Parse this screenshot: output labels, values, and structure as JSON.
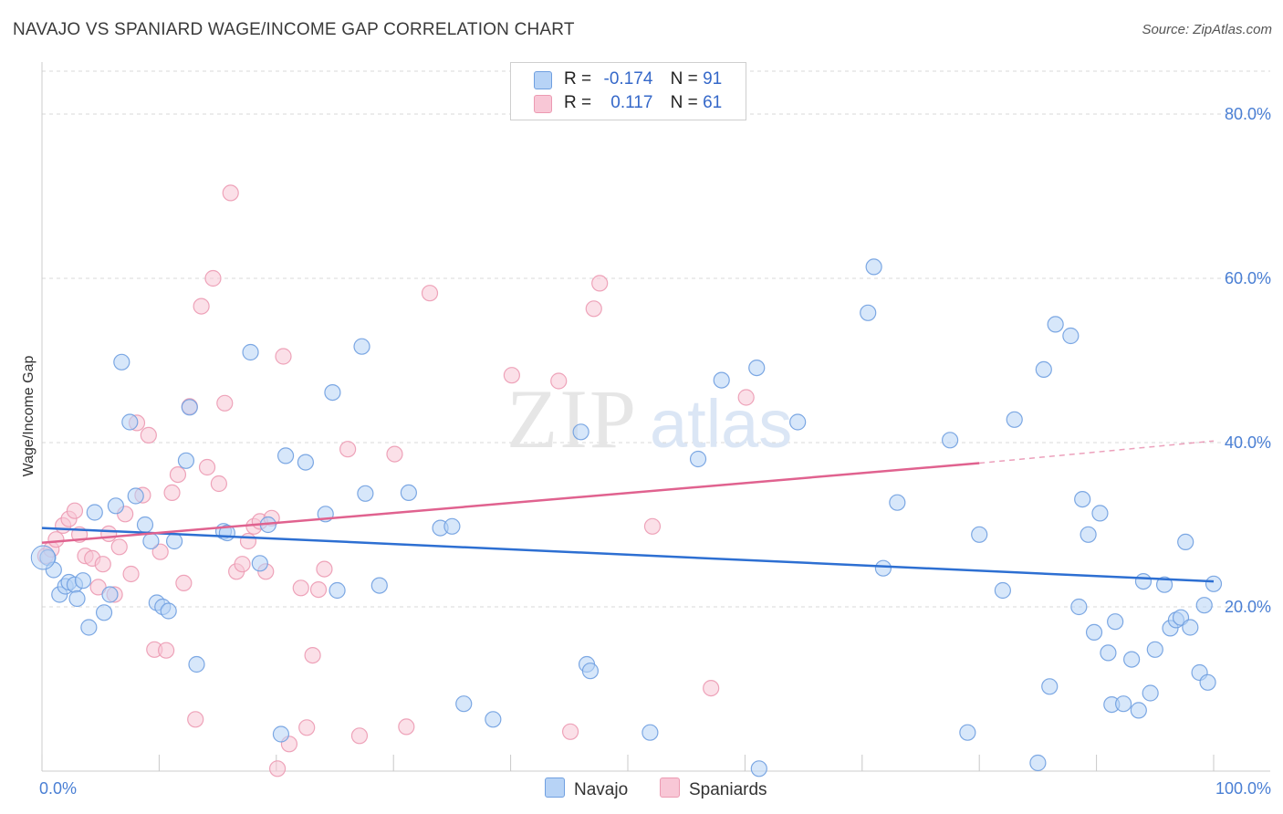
{
  "title": "NAVAJO VS SPANIARD WAGE/INCOME GAP CORRELATION CHART",
  "source": "Source: ZipAtlas.com",
  "watermark": {
    "zip": "ZIP",
    "atlas": "atlas"
  },
  "legend": {
    "navajo": {
      "r_label": "R =",
      "r_value": "-0.174",
      "n_label": "N =",
      "n_value": "91"
    },
    "spaniards": {
      "r_label": "R =",
      "r_value": "0.117",
      "n_label": "N =",
      "n_value": "61"
    }
  },
  "colors": {
    "navajo_fill": "#b7d3f6",
    "navajo_stroke": "#6f9fe0",
    "navajo_line": "#2d6fd2",
    "spaniards_fill": "#f8c7d6",
    "spaniards_stroke": "#ec9ab2",
    "spaniards_line": "#e0628f",
    "grid": "#d9d9d9",
    "axis_tick_text": "#4a7fd4"
  },
  "chart_data": {
    "type": "scatter",
    "title": "NAVAJO VS SPANIARD WAGE/INCOME GAP CORRELATION CHART",
    "xlabel": "",
    "ylabel": "Wage/Income Gap",
    "xlim": [
      0,
      100
    ],
    "ylim": [
      0,
      85
    ],
    "x_tick_labels": [
      "0.0%",
      "100.0%"
    ],
    "y_ticks": [
      20,
      40,
      60,
      80
    ],
    "y_tick_labels": [
      "20.0%",
      "40.0%",
      "60.0%",
      "80.0%"
    ],
    "grid": "horizontal dashed",
    "legend_position": "top-center",
    "series": [
      {
        "name": "Navajo",
        "r": -0.174,
        "n": 91,
        "trend": {
          "x": [
            0,
            100
          ],
          "y": [
            29.6,
            23.1
          ]
        },
        "points": [
          [
            0.5,
            26
          ],
          [
            1,
            24.5
          ],
          [
            1.5,
            21.5
          ],
          [
            2,
            22.5
          ],
          [
            2.3,
            23
          ],
          [
            2.8,
            22.7
          ],
          [
            3,
            21
          ],
          [
            3.5,
            23.2
          ],
          [
            4,
            17.5
          ],
          [
            4.5,
            31.5
          ],
          [
            5.3,
            19.3
          ],
          [
            5.8,
            21.5
          ],
          [
            6.3,
            32.3
          ],
          [
            6.8,
            49.8
          ],
          [
            7.5,
            42.5
          ],
          [
            8,
            33.5
          ],
          [
            8.8,
            30
          ],
          [
            9.3,
            28
          ],
          [
            9.8,
            20.5
          ],
          [
            10.3,
            20
          ],
          [
            10.8,
            19.5
          ],
          [
            11.3,
            28
          ],
          [
            12.3,
            37.8
          ],
          [
            12.6,
            44.3
          ],
          [
            13.2,
            13
          ],
          [
            15.5,
            29.2
          ],
          [
            15.8,
            29
          ],
          [
            17.8,
            51
          ],
          [
            18.6,
            25.3
          ],
          [
            19.3,
            30
          ],
          [
            20.4,
            4.5
          ],
          [
            20.8,
            38.4
          ],
          [
            22.5,
            37.6
          ],
          [
            24.2,
            31.3
          ],
          [
            24.8,
            46.1
          ],
          [
            25.2,
            22
          ],
          [
            27.3,
            51.7
          ],
          [
            27.6,
            33.8
          ],
          [
            28.8,
            22.6
          ],
          [
            31.3,
            33.9
          ],
          [
            34,
            29.6
          ],
          [
            35,
            29.8
          ],
          [
            36,
            8.2
          ],
          [
            38.5,
            6.3
          ],
          [
            46,
            41.3
          ],
          [
            46.5,
            13
          ],
          [
            46.8,
            12.2
          ],
          [
            51.9,
            4.7
          ],
          [
            56,
            38
          ],
          [
            58,
            47.6
          ],
          [
            61,
            49.1
          ],
          [
            61.2,
            0.3
          ],
          [
            64.5,
            42.5
          ],
          [
            70.5,
            55.8
          ],
          [
            71,
            61.4
          ],
          [
            71.8,
            24.7
          ],
          [
            73,
            32.7
          ],
          [
            77.5,
            40.3
          ],
          [
            79,
            4.7
          ],
          [
            80,
            28.8
          ],
          [
            82,
            22
          ],
          [
            83,
            42.8
          ],
          [
            85,
            1
          ],
          [
            85.5,
            48.9
          ],
          [
            86,
            10.3
          ],
          [
            86.5,
            54.4
          ],
          [
            87.8,
            53.0
          ],
          [
            88.5,
            20
          ],
          [
            88.8,
            33.1
          ],
          [
            89.3,
            28.8
          ],
          [
            89.8,
            16.9
          ],
          [
            90.3,
            31.4
          ],
          [
            91,
            14.4
          ],
          [
            91.3,
            8.1
          ],
          [
            91.6,
            18.2
          ],
          [
            92.3,
            8.2
          ],
          [
            93,
            13.6
          ],
          [
            93.6,
            7.4
          ],
          [
            94,
            23.1
          ],
          [
            94.6,
            9.5
          ],
          [
            95,
            14.8
          ],
          [
            95.8,
            22.7
          ],
          [
            96.3,
            17.4
          ],
          [
            96.8,
            18.4
          ],
          [
            97.2,
            18.7
          ],
          [
            97.6,
            27.9
          ],
          [
            98,
            17.5
          ],
          [
            98.8,
            12
          ],
          [
            99.2,
            20.2
          ],
          [
            99.5,
            10.8
          ],
          [
            100,
            22.8
          ]
        ]
      },
      {
        "name": "Spaniards",
        "r": 0.117,
        "n": 61,
        "trend": {
          "x": [
            0,
            80
          ],
          "y": [
            27.8,
            37.5
          ]
        },
        "trend_dashed": {
          "x": [
            80,
            100
          ],
          "y": [
            37.5,
            40.2
          ]
        },
        "points": [
          [
            0.3,
            26.2
          ],
          [
            0.8,
            27
          ],
          [
            1.2,
            28.2
          ],
          [
            1.8,
            29.9
          ],
          [
            2.3,
            30.7
          ],
          [
            2.8,
            31.7
          ],
          [
            3.2,
            28.8
          ],
          [
            3.7,
            26.2
          ],
          [
            4.3,
            25.9
          ],
          [
            4.8,
            22.4
          ],
          [
            5.2,
            25.2
          ],
          [
            5.7,
            28.9
          ],
          [
            6.2,
            21.5
          ],
          [
            6.6,
            27.3
          ],
          [
            7.1,
            31.3
          ],
          [
            7.6,
            24
          ],
          [
            8.1,
            42.4
          ],
          [
            8.6,
            33.6
          ],
          [
            9.1,
            40.9
          ],
          [
            9.6,
            14.8
          ],
          [
            10.1,
            26.7
          ],
          [
            10.6,
            14.7
          ],
          [
            11.1,
            33.9
          ],
          [
            11.6,
            36.1
          ],
          [
            12.1,
            22.9
          ],
          [
            12.6,
            44.4
          ],
          [
            13.1,
            6.3
          ],
          [
            13.6,
            56.6
          ],
          [
            14.1,
            37
          ],
          [
            14.6,
            60
          ],
          [
            15.1,
            35
          ],
          [
            15.6,
            44.8
          ],
          [
            16.1,
            70.4
          ],
          [
            16.6,
            24.3
          ],
          [
            17.1,
            25.2
          ],
          [
            17.6,
            28
          ],
          [
            18.1,
            29.8
          ],
          [
            18.6,
            30.4
          ],
          [
            19.1,
            24.3
          ],
          [
            19.6,
            30.8
          ],
          [
            20.1,
            0.3
          ],
          [
            20.6,
            50.5
          ],
          [
            21.1,
            3.3
          ],
          [
            22.1,
            22.3
          ],
          [
            22.6,
            5.3
          ],
          [
            23.1,
            14.1
          ],
          [
            23.6,
            22.1
          ],
          [
            24.1,
            24.6
          ],
          [
            26.1,
            39.2
          ],
          [
            27.1,
            4.3
          ],
          [
            30.1,
            38.6
          ],
          [
            31.1,
            5.4
          ],
          [
            33.1,
            58.2
          ],
          [
            40.1,
            48.2
          ],
          [
            44.1,
            47.5
          ],
          [
            45.1,
            4.8
          ],
          [
            47.1,
            56.3
          ],
          [
            47.6,
            59.4
          ],
          [
            52.1,
            29.8
          ],
          [
            57.1,
            10.1
          ],
          [
            60.1,
            45.5
          ]
        ]
      }
    ]
  }
}
